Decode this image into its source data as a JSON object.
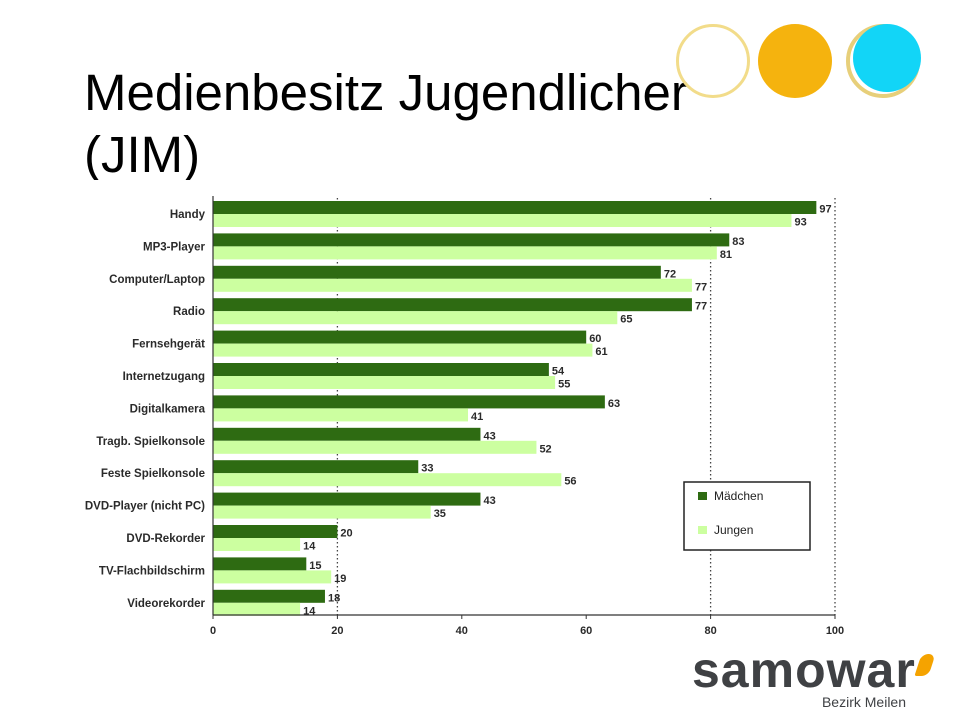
{
  "slide": {
    "title": "Medienbesitz Jugendlicher (JIM)"
  },
  "logo": {
    "wordmark": "samowar",
    "subtitle": "Bezirk Meilen"
  },
  "colors": {
    "maedchen": "#2e6b12",
    "jungen": "#ccffa0",
    "accent_yellow": "#f5b30e",
    "accent_cyan": "#12d5f7"
  },
  "chart_data": {
    "type": "bar",
    "orientation": "horizontal",
    "title": "",
    "xlabel": "",
    "ylabel": "",
    "categories": [
      "Handy",
      "MP3-Player",
      "Computer/Laptop",
      "Radio",
      "Fernsehgerät",
      "Internetzugang",
      "Digitalkamera",
      "Tragb. Spielkonsole",
      "Feste Spielkonsole",
      "DVD-Player (nicht PC)",
      "DVD-Rekorder",
      "TV-Flachbildschirm",
      "Videorekorder"
    ],
    "series": [
      {
        "name": "Mädchen",
        "values": [
          97,
          83,
          72,
          77,
          60,
          54,
          63,
          43,
          33,
          43,
          20,
          15,
          18
        ]
      },
      {
        "name": "Jungen",
        "values": [
          93,
          81,
          77,
          65,
          61,
          55,
          41,
          52,
          56,
          35,
          14,
          19,
          14
        ]
      }
    ],
    "xlim": [
      0,
      100
    ],
    "xticks": [
      0,
      20,
      40,
      60,
      80,
      100
    ],
    "grid": "dotted vertical lines at 20, 80, 100",
    "legend": "bottom-right"
  }
}
